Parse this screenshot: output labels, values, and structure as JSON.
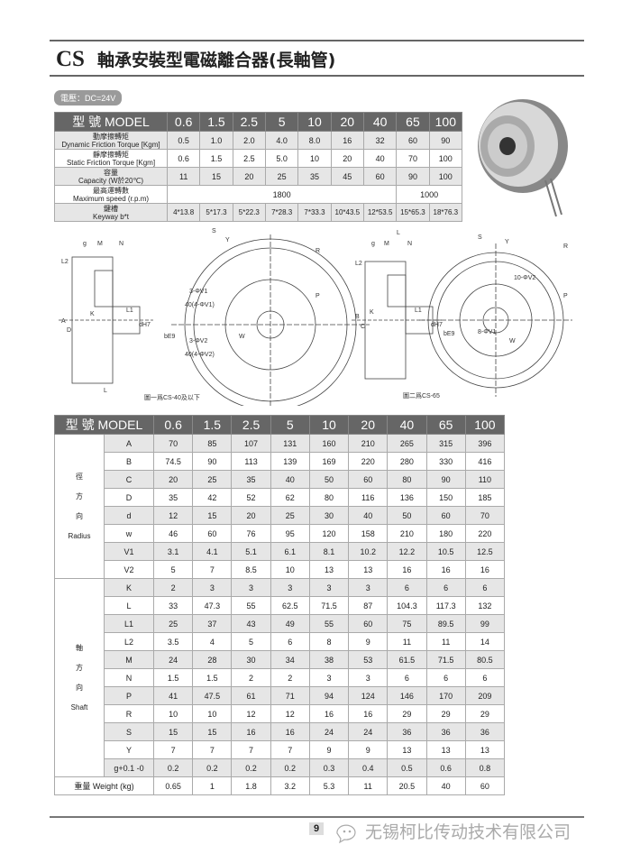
{
  "header": {
    "code": "CS",
    "title": "軸承安裝型電磁離合器(長軸管)"
  },
  "voltage": "電壓：DC=24V",
  "spec_table": {
    "model_label": "型 號 MODEL",
    "models": [
      "0.6",
      "1.5",
      "2.5",
      "5",
      "10",
      "20",
      "40",
      "65",
      "100"
    ],
    "rows": [
      {
        "zh": "動摩擦轉矩",
        "en": "Dynamic Friction Torque",
        "unit": "[Kgm]",
        "values": [
          "0.5",
          "1.0",
          "2.0",
          "4.0",
          "8.0",
          "16",
          "32",
          "60",
          "90"
        ]
      },
      {
        "zh": "靜摩擦轉矩",
        "en": "Static Friction Torque",
        "unit": "[Kgm]",
        "values": [
          "0.6",
          "1.5",
          "2.5",
          "5.0",
          "10",
          "20",
          "40",
          "70",
          "100"
        ]
      },
      {
        "zh": "容量",
        "en": "Capacity",
        "unit": "(W於20℃)",
        "values": [
          "11",
          "15",
          "20",
          "25",
          "35",
          "45",
          "60",
          "90",
          "100"
        ]
      },
      {
        "zh": "最高運轉數",
        "en": "Maximum speed",
        "unit": "(r.p.m)",
        "merged": [
          {
            "value": "1800",
            "span": 7
          },
          {
            "value": "1000",
            "span": 2
          }
        ]
      },
      {
        "zh": "鍵槽",
        "en": "Keyway b*t",
        "unit": "",
        "values": [
          "4*13.8",
          "5*17.3",
          "5*22.3",
          "7*28.3",
          "7*33.3",
          "10*43.5",
          "12*53.5",
          "15*65.3",
          "18*76.3"
        ]
      }
    ]
  },
  "diagrams": {
    "caption1": "圖一爲CS-40及以下",
    "caption2": "圖二爲CS-65",
    "labels1": [
      "g",
      "M",
      "N",
      "L2",
      "A",
      "D",
      "K",
      "L1",
      "dH7",
      "bE9",
      "L",
      "S",
      "Y",
      "R",
      "P",
      "W",
      "3-ΦV1",
      "40(4-ΦV1)",
      "3-ΦV2",
      "40(4-ΦV2)"
    ],
    "labels2": [
      "L",
      "g",
      "M",
      "N",
      "L2",
      "B",
      "C",
      "K",
      "L1",
      "dH7",
      "bE9",
      "S",
      "Y",
      "R",
      "P",
      "W",
      "10-ΦV2",
      "8-ΦV1"
    ]
  },
  "dim_table": {
    "model_label": "型 號 MODEL",
    "models": [
      "0.6",
      "1.5",
      "2.5",
      "5",
      "10",
      "20",
      "40",
      "65",
      "100"
    ],
    "groups": [
      {
        "zh": [
          "徑",
          "方",
          "向"
        ],
        "en": "Radius",
        "rows": [
          {
            "p": "A",
            "values": [
              "70",
              "85",
              "107",
              "131",
              "160",
              "210",
              "265",
              "315",
              "396"
            ]
          },
          {
            "p": "B",
            "values": [
              "74.5",
              "90",
              "113",
              "139",
              "169",
              "220",
              "280",
              "330",
              "416"
            ]
          },
          {
            "p": "C",
            "values": [
              "20",
              "25",
              "35",
              "40",
              "50",
              "60",
              "80",
              "90",
              "110"
            ]
          },
          {
            "p": "D",
            "values": [
              "35",
              "42",
              "52",
              "62",
              "80",
              "116",
              "136",
              "150",
              "185"
            ]
          },
          {
            "p": "d",
            "values": [
              "12",
              "15",
              "20",
              "25",
              "30",
              "40",
              "50",
              "60",
              "70"
            ]
          },
          {
            "p": "w",
            "values": [
              "46",
              "60",
              "76",
              "95",
              "120",
              "158",
              "210",
              "180",
              "220"
            ]
          },
          {
            "p": "V1",
            "values": [
              "3.1",
              "4.1",
              "5.1",
              "6.1",
              "8.1",
              "10.2",
              "12.2",
              "10.5",
              "12.5"
            ]
          },
          {
            "p": "V2",
            "values": [
              "5",
              "7",
              "8.5",
              "10",
              "13",
              "13",
              "16",
              "16",
              "16"
            ]
          }
        ]
      },
      {
        "zh": [
          "軸",
          "方",
          "向"
        ],
        "en": "Shaft",
        "rows": [
          {
            "p": "K",
            "values": [
              "2",
              "3",
              "3",
              "3",
              "3",
              "3",
              "6",
              "6",
              "6"
            ]
          },
          {
            "p": "L",
            "values": [
              "33",
              "47.3",
              "55",
              "62.5",
              "71.5",
              "87",
              "104.3",
              "117.3",
              "132"
            ]
          },
          {
            "p": "L1",
            "values": [
              "25",
              "37",
              "43",
              "49",
              "55",
              "60",
              "75",
              "89.5",
              "99"
            ]
          },
          {
            "p": "L2",
            "values": [
              "3.5",
              "4",
              "5",
              "6",
              "8",
              "9",
              "11",
              "11",
              "14"
            ]
          },
          {
            "p": "M",
            "values": [
              "24",
              "28",
              "30",
              "34",
              "38",
              "53",
              "61.5",
              "71.5",
              "80.5"
            ]
          },
          {
            "p": "N",
            "values": [
              "1.5",
              "1.5",
              "2",
              "2",
              "3",
              "3",
              "6",
              "6",
              "6"
            ]
          },
          {
            "p": "P",
            "values": [
              "41",
              "47.5",
              "61",
              "71",
              "94",
              "124",
              "146",
              "170",
              "209"
            ]
          },
          {
            "p": "R",
            "values": [
              "10",
              "10",
              "12",
              "12",
              "16",
              "16",
              "29",
              "29",
              "29"
            ]
          },
          {
            "p": "S",
            "values": [
              "15",
              "15",
              "16",
              "16",
              "24",
              "24",
              "36",
              "36",
              "36"
            ]
          },
          {
            "p": "Y",
            "values": [
              "7",
              "7",
              "7",
              "7",
              "9",
              "9",
              "13",
              "13",
              "13"
            ]
          },
          {
            "p": "g+0.1 -0",
            "values": [
              "0.2",
              "0.2",
              "0.2",
              "0.2",
              "0.3",
              "0.4",
              "0.5",
              "0.6",
              "0.8"
            ]
          }
        ]
      }
    ],
    "weight": {
      "label": "重量 Weight (kg)",
      "values": [
        "0.65",
        "1",
        "1.8",
        "3.2",
        "5.3",
        "11",
        "20.5",
        "40",
        "60"
      ]
    }
  },
  "footer": {
    "page": "9",
    "company": "无锡柯比传动技术有限公司"
  }
}
